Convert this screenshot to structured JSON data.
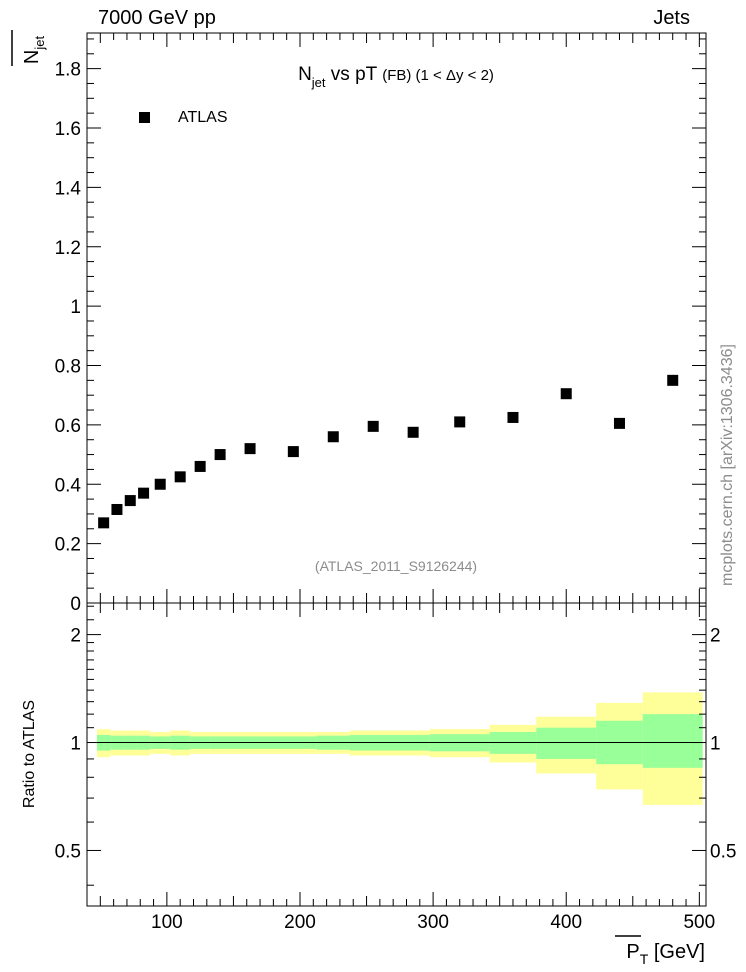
{
  "header": {
    "energy_label": "7000 GeV pp",
    "category_label": "Jets"
  },
  "side_note": "mcplots.cern.ch [arXiv:1306.3436]",
  "colors": {
    "marker": "#000000",
    "band_inner": "#99ff99",
    "band_outer": "#ffff99",
    "analysis_label": "#8c8c8c"
  },
  "chart_data": [
    {
      "type": "scatter",
      "title_main": "N",
      "title_sub": "jet",
      "title_rest": " vs pT ",
      "title_small": "(FB) (1 < Δy < 2)",
      "ylabel_overline": "N",
      "ylabel_sub": "jet",
      "xlabel_main": "P",
      "xlabel_sub": "T",
      "xlabel_unit": " [GeV]",
      "legend": "ATLAS",
      "analysis_id": "(ATLAS_2011_S9126244)",
      "xlim": [
        40,
        505
      ],
      "ylim": [
        0,
        1.92
      ],
      "yticks": [
        0,
        0.2,
        0.4,
        0.6,
        0.8,
        1,
        1.2,
        1.4,
        1.6,
        1.8
      ],
      "ytick_labels": [
        "0",
        "0.2",
        "0.4",
        "0.6",
        "0.8",
        "1",
        "1.2",
        "1.4",
        "1.6",
        "1.8"
      ],
      "series": [
        {
          "name": "ATLAS",
          "x": [
            52.5,
            62.5,
            72.5,
            82.5,
            95,
            110,
            125,
            140,
            162.5,
            195,
            225,
            255,
            285,
            320,
            360,
            400,
            440,
            480
          ],
          "y": [
            0.27,
            0.315,
            0.345,
            0.37,
            0.4,
            0.425,
            0.46,
            0.5,
            0.52,
            0.51,
            0.56,
            0.595,
            0.575,
            0.61,
            0.625,
            0.705,
            0.605,
            0.75
          ]
        }
      ]
    },
    {
      "type": "area",
      "ylabel": "Ratio to ATLAS",
      "xlim": [
        40,
        505
      ],
      "ylim": [
        0.35,
        2.45
      ],
      "yscale": "log",
      "xticks": [
        100,
        200,
        300,
        400,
        500
      ],
      "xtick_labels": [
        "100",
        "200",
        "300",
        "400",
        "500"
      ],
      "yticks": [
        0.5,
        1,
        2
      ],
      "ytick_labels": [
        "0.5",
        "1",
        "2"
      ],
      "bin_edges": [
        47.5,
        57.5,
        67.5,
        77.5,
        87.5,
        102.5,
        117.5,
        132.5,
        147.5,
        177.5,
        212.5,
        237.5,
        272.5,
        297.5,
        342.5,
        377.5,
        422.5,
        457.5,
        502.5
      ],
      "outer_band": {
        "lo": [
          0.91,
          0.92,
          0.92,
          0.92,
          0.93,
          0.92,
          0.93,
          0.93,
          0.93,
          0.93,
          0.93,
          0.92,
          0.92,
          0.91,
          0.88,
          0.82,
          0.74,
          0.67
        ],
        "hi": [
          1.09,
          1.08,
          1.08,
          1.08,
          1.07,
          1.08,
          1.07,
          1.07,
          1.07,
          1.07,
          1.07,
          1.08,
          1.08,
          1.09,
          1.12,
          1.18,
          1.29,
          1.38
        ]
      },
      "inner_band": {
        "lo": [
          0.95,
          0.955,
          0.955,
          0.955,
          0.96,
          0.955,
          0.96,
          0.96,
          0.96,
          0.96,
          0.955,
          0.95,
          0.95,
          0.945,
          0.93,
          0.9,
          0.87,
          0.85
        ],
        "hi": [
          1.05,
          1.045,
          1.045,
          1.045,
          1.04,
          1.045,
          1.04,
          1.04,
          1.04,
          1.04,
          1.045,
          1.05,
          1.05,
          1.055,
          1.07,
          1.1,
          1.15,
          1.2
        ]
      },
      "reference_line": 1
    }
  ]
}
